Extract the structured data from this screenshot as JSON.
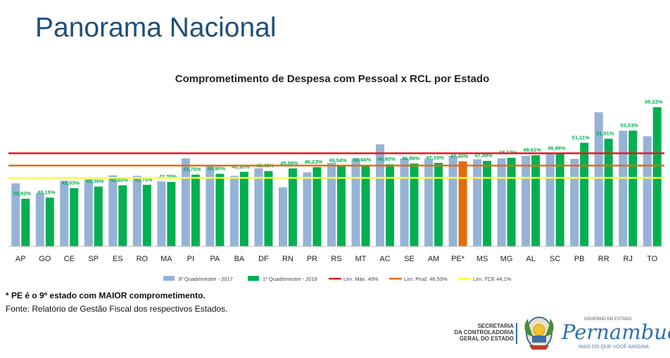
{
  "header": {
    "title": "Panorama Nacional"
  },
  "footnotes": {
    "highlight": "* PE é o 9º estado com MAIOR comprometimento.",
    "source": "Fonte: Relatório de Gestão Fiscal dos respectivos Estados."
  },
  "logos": {
    "secretaria": [
      "SECRETARIA",
      "DA CONTROLADORIA",
      "GERAL DO ESTADO"
    ],
    "governo_label": "GOVERNO DO ESTADO",
    "state_name": "Pernambuco",
    "tagline": "MAIS DO QUE VOCÊ IMAGINA"
  },
  "chart_data": {
    "type": "bar",
    "title": "Comprometimento de Despesa com Pessoal x RCL por Estado",
    "categories": [
      "AP",
      "GO",
      "CE",
      "SP",
      "ES",
      "RO",
      "MA",
      "PI",
      "PA",
      "BA",
      "DF",
      "RN",
      "PR",
      "RS",
      "MT",
      "AC",
      "SE",
      "AM",
      "PE*",
      "MS",
      "MG",
      "AL",
      "SC",
      "PB",
      "RR",
      "RJ",
      "TO"
    ],
    "series": [
      {
        "name": "3º Quadrimestre - 2017",
        "color": "#95b3d7",
        "values": [
          43.0,
          41.0,
          43.5,
          43.8,
          44.6,
          44.5,
          43.4,
          48.0,
          46.5,
          44.5,
          46.0,
          42.2,
          45.2,
          47.1,
          48.0,
          50.8,
          48.0,
          47.9,
          48.5,
          47.8,
          48.0,
          48.5,
          49.1,
          47.9,
          57.2,
          53.5,
          52.4
        ]
      },
      {
        "name": "1º Quadrimestre - 2018",
        "color": "#00b050",
        "values": [
          39.92,
          40.15,
          42.03,
          42.36,
          42.6,
          42.7,
          43.28,
          44.75,
          44.9,
          45.3,
          45.45,
          45.98,
          46.23,
          46.54,
          46.66,
          46.8,
          46.96,
          47.1,
          47.4,
          47.49,
          48.12,
          48.61,
          48.99,
          51.11,
          51.91,
          53.53,
          58.22
        ],
        "labels": [
          "39,92%",
          "40,15%",
          "42,03%",
          "42,36%",
          "42,60%",
          "42,70%",
          "43,28%",
          "44,75%",
          "44,90%",
          "45,30%",
          "45,45%",
          "45,98%",
          "46,23%",
          "46,54%",
          "46,66%",
          "46,80%",
          "46,96%",
          "47,10%",
          "47,40%",
          "47,49%",
          "48,12%",
          "48,61%",
          "48,99%",
          "51,11%",
          "51,91%",
          "53,53%",
          "58,22%"
        ]
      }
    ],
    "highlight_category": "PE*",
    "highlight_color": "#e36c09",
    "reference_lines": [
      {
        "name": "Lim. Máx. 49%",
        "value": 49.0,
        "color": "#e31a1c"
      },
      {
        "name": "Lim. Prud. 46,55%",
        "value": 46.55,
        "color": "#e36c09"
      },
      {
        "name": "Lim. TCE 44,1%",
        "value": 44.1,
        "color": "#ffff33"
      }
    ],
    "ylim": [
      30.4,
      60
    ],
    "grid": false,
    "legend_position": "bottom"
  }
}
